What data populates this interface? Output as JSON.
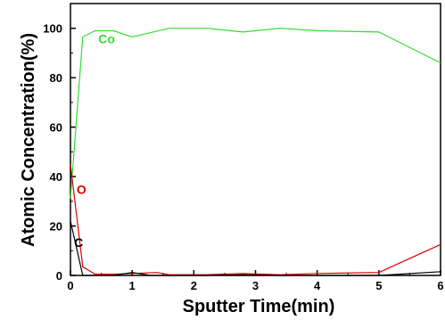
{
  "chart_data": {
    "type": "line",
    "xlabel": "Sputter Time(min)",
    "ylabel": "Atomic Concentration(%)",
    "xlim": [
      0,
      6
    ],
    "ylim": [
      0,
      110
    ],
    "x_ticks": [
      0,
      1,
      2,
      3,
      4,
      5,
      6
    ],
    "y_ticks": [
      0,
      20,
      40,
      60,
      80,
      100
    ],
    "grid": false,
    "legend": "none",
    "series": [
      {
        "name": "Co",
        "color": "#33dd33",
        "x": [
          0,
          0.2,
          0.4,
          0.7,
          1.0,
          1.6,
          2.2,
          2.8,
          3.4,
          4.0,
          5.0,
          6.0
        ],
        "y": [
          31,
          96.5,
          99,
          99,
          96.5,
          100,
          100,
          98.5,
          100,
          99,
          98.5,
          86
        ]
      },
      {
        "name": "O",
        "color": "#dd0000",
        "x": [
          0,
          0.2,
          0.4,
          0.7,
          1.0,
          1.4,
          1.6,
          2.2,
          2.8,
          3.4,
          4.0,
          5.0,
          6.0
        ],
        "y": [
          45,
          3.5,
          0.5,
          0.5,
          0.8,
          1.2,
          0.3,
          0.3,
          0.8,
          0.3,
          0.8,
          1.2,
          12.5
        ]
      },
      {
        "name": "C",
        "color": "#000000",
        "x": [
          0,
          0.2,
          0.4,
          0.7,
          1.0,
          1.3,
          1.6,
          2.2,
          2.8,
          3.4,
          4.0,
          5.0,
          6.0
        ],
        "y": [
          22,
          0,
          0,
          0,
          1.2,
          0,
          0,
          0,
          0.3,
          0,
          0,
          0,
          1.5
        ]
      }
    ]
  }
}
